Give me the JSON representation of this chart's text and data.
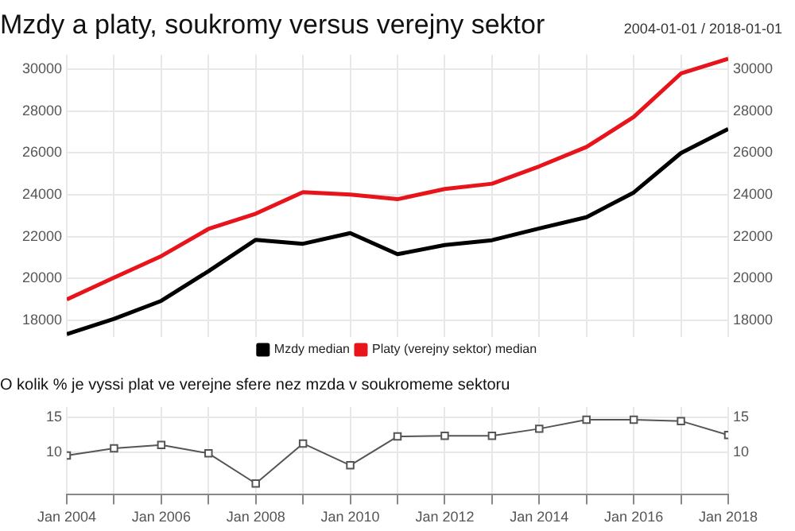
{
  "chart_data": [
    {
      "type": "line",
      "title": "Mzdy a platy, soukromy versus verejny sektor",
      "annotations": [
        "2004-01-01 / 2018-01-01"
      ],
      "x": [
        "2004-01",
        "2005-01",
        "2006-01",
        "2007-01",
        "2008-01",
        "2009-01",
        "2010-01",
        "2011-01",
        "2012-01",
        "2013-01",
        "2014-01",
        "2015-01",
        "2016-01",
        "2017-01",
        "2018-01"
      ],
      "series": [
        {
          "name": "Mzdy median",
          "color": "#000000",
          "values": [
            17340,
            18070,
            18930,
            20350,
            21850,
            21660,
            22170,
            21160,
            21600,
            21830,
            22390,
            22930,
            24110,
            26000,
            27150
          ]
        },
        {
          "name": "Platy (verejny sektor) median",
          "color": "#e8141c",
          "values": [
            19000,
            20040,
            21070,
            22370,
            23100,
            24130,
            24010,
            23790,
            24280,
            24530,
            25360,
            26290,
            27720,
            29800,
            30510
          ]
        }
      ],
      "xlim": [
        "2004-01",
        "2018-01"
      ],
      "xticks": [
        {
          "value": "2004-01",
          "label": null
        },
        {
          "value": "2005-01",
          "label": null
        },
        {
          "value": "2006-01",
          "label": null
        },
        {
          "value": "2007-01",
          "label": null
        },
        {
          "value": "2008-01",
          "label": null
        },
        {
          "value": "2009-01",
          "label": null
        },
        {
          "value": "2010-01",
          "label": null
        },
        {
          "value": "2011-01",
          "label": null
        },
        {
          "value": "2012-01",
          "label": null
        },
        {
          "value": "2013-01",
          "label": null
        },
        {
          "value": "2014-01",
          "label": null
        },
        {
          "value": "2015-01",
          "label": null
        },
        {
          "value": "2016-01",
          "label": null
        },
        {
          "value": "2017-01",
          "label": null
        },
        {
          "value": "2018-01",
          "label": null
        }
      ],
      "ylim": [
        17200,
        30700
      ],
      "yticks": [
        18000,
        20000,
        22000,
        24000,
        26000,
        28000,
        30000
      ],
      "y2lim": [
        17200,
        30700
      ],
      "y2ticks": [
        18000,
        20000,
        22000,
        24000,
        26000,
        28000,
        30000
      ],
      "tick_labels": "y",
      "grid": true,
      "legend": "bottom",
      "marker": "none",
      "line_style": "solid"
    },
    {
      "type": "line",
      "title": "O kolik % je vyssi plat ve verejne sfere nez mzda v soukromeme sektoru",
      "x": [
        "2004-01",
        "2005-01",
        "2006-01",
        "2007-01",
        "2008-01",
        "2009-01",
        "2010-01",
        "2011-01",
        "2012-01",
        "2013-01",
        "2014-01",
        "2015-01",
        "2016-01",
        "2017-01",
        "2018-01"
      ],
      "series": [
        {
          "color": "#555555",
          "values": [
            9.6,
            10.6,
            11.1,
            9.9,
            5.6,
            11.3,
            8.2,
            12.3,
            12.4,
            12.4,
            13.4,
            14.7,
            14.7,
            14.5,
            12.5
          ]
        }
      ],
      "xlim": [
        "2004-01",
        "2018-01"
      ],
      "xticks": [
        {
          "value": "2004-01",
          "label": "Jan 2004"
        },
        {
          "value": "2005-01",
          "label": null
        },
        {
          "value": "2006-01",
          "label": "Jan 2006"
        },
        {
          "value": "2007-01",
          "label": null
        },
        {
          "value": "2008-01",
          "label": "Jan 2008"
        },
        {
          "value": "2009-01",
          "label": null
        },
        {
          "value": "2010-01",
          "label": "Jan 2010"
        },
        {
          "value": "2011-01",
          "label": null
        },
        {
          "value": "2012-01",
          "label": "Jan 2012"
        },
        {
          "value": "2013-01",
          "label": null
        },
        {
          "value": "2014-01",
          "label": "Jan 2014"
        },
        {
          "value": "2015-01",
          "label": null
        },
        {
          "value": "2016-01",
          "label": "Jan 2016"
        },
        {
          "value": "2017-01",
          "label": null
        },
        {
          "value": "2018-01",
          "label": "Jan 2018"
        }
      ],
      "ylim": [
        4,
        16.5
      ],
      "yticks": [
        10,
        15
      ],
      "y2lim": [
        4,
        16.5
      ],
      "y2ticks": [
        10,
        15
      ],
      "grid": true,
      "legend": false,
      "marker": "square",
      "line_style": "solid"
    }
  ]
}
